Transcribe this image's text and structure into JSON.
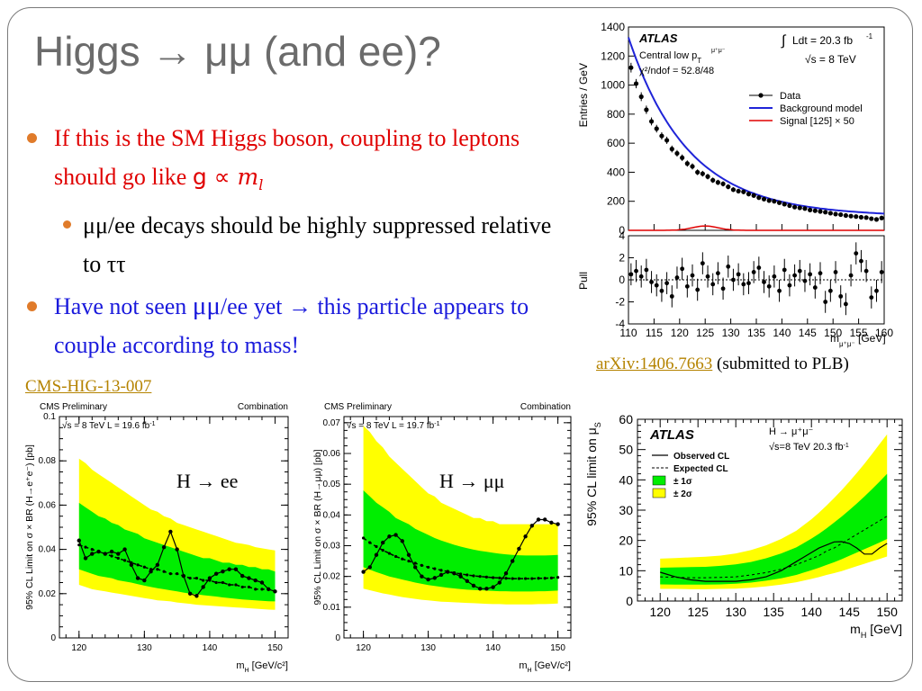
{
  "slide": {
    "title": "Higgs → μμ (and ee)?",
    "bullet1_text": "If this is the SM Higgs boson, coupling to leptons should go like ",
    "bullet1_formula_g": "g ∝ ",
    "bullet1_formula_m": "m",
    "bullet1_formula_l": "l",
    "bullet2_mumu": "μμ",
    "bullet2_text": "/ee decays should be highly suppressed relative to ",
    "bullet2_tautau": "ττ",
    "bullet3_a": "Have not seen ",
    "bullet3_mumu": "μμ",
    "bullet3_b": "/ee yet → this particle appears to couple according to mass!",
    "cms_link": "CMS-HIG-13-007",
    "arxiv_link": "arXiv:1406.7663",
    "arxiv_note": " (submitted to PLB)",
    "ann_ee": "H → ee",
    "ann_mumu": "H → μμ",
    "colors": {
      "bullet": "#e07b2a",
      "red": "#e00000",
      "blue": "#1a1adc",
      "link": "#b58300",
      "band1": "#00ee00",
      "band2": "#ffff00"
    }
  },
  "chart_data": [
    {
      "type": "scatter",
      "id": "atlas_mass",
      "title": "ATLAS",
      "labels": [
        "Central low p",
        "T",
        "μ⁺μ⁻",
        "χ²/ndof = 52.8/48",
        "Ldt = 20.3 fb",
        "-1",
        "√s = 8 TeV"
      ],
      "ylabel": "Entries / GeV",
      "xlabel": "m",
      "xlabel_sub": "μ⁺μ⁻",
      "xlabel_unit": " [GeV]",
      "xlim": [
        110,
        160
      ],
      "ylim": [
        0,
        1400
      ],
      "yticks": [
        0,
        200,
        400,
        600,
        800,
        1000,
        1200,
        1400
      ],
      "xticks": [
        110,
        115,
        120,
        125,
        130,
        135,
        140,
        145,
        150,
        155,
        160
      ],
      "legend": [
        "Data",
        "Background model",
        "Signal [125] × 50"
      ],
      "x": [
        110.5,
        111.5,
        112.5,
        113.5,
        114.5,
        115.5,
        116.5,
        117.5,
        118.5,
        119.5,
        120.5,
        121.5,
        122.5,
        123.5,
        124.5,
        125.5,
        126.5,
        127.5,
        128.5,
        129.5,
        130.5,
        131.5,
        132.5,
        133.5,
        134.5,
        135.5,
        136.5,
        137.5,
        138.5,
        139.5,
        140.5,
        141.5,
        142.5,
        143.5,
        144.5,
        145.5,
        146.5,
        147.5,
        148.5,
        149.5,
        150.5,
        151.5,
        152.5,
        153.5,
        154.5,
        155.5,
        156.5,
        157.5,
        158.5,
        159.5
      ],
      "y": [
        1120,
        1010,
        920,
        830,
        750,
        700,
        650,
        620,
        560,
        530,
        500,
        460,
        440,
        400,
        390,
        370,
        345,
        330,
        320,
        300,
        280,
        270,
        265,
        250,
        240,
        225,
        215,
        205,
        200,
        190,
        180,
        170,
        160,
        155,
        150,
        140,
        135,
        130,
        125,
        118,
        112,
        108,
        102,
        98,
        95,
        90,
        88,
        80,
        75,
        85
      ],
      "pull": {
        "ylabel": "Pull",
        "ylim": [
          -4,
          4
        ],
        "yticks": [
          -4,
          -2,
          0,
          2,
          4
        ],
        "values": [
          0.5,
          0.8,
          0.3,
          0.9,
          -0.2,
          -0.5,
          -1.0,
          -0.3,
          -1.5,
          0.2,
          1.0,
          -0.6,
          0.4,
          -0.9,
          1.5,
          0.3,
          -0.4,
          0.6,
          -0.8,
          1.2,
          0.0,
          0.5,
          -0.4,
          -0.3,
          0.7,
          1.1,
          -0.2,
          -0.6,
          0.3,
          -1.0,
          0.9,
          -0.5,
          0.4,
          0.8,
          -0.1,
          0.5,
          -0.7,
          0.6,
          -2.0,
          -1.0,
          0.7,
          -1.5,
          -2.2,
          0.4,
          2.4,
          1.7,
          0.8,
          -1.6,
          -1.0,
          0.7
        ]
      },
      "signal": {
        "center": 125,
        "peak": 30,
        "sigma": 2.5
      }
    },
    {
      "type": "line",
      "id": "cms_ee",
      "header_left": "CMS Preliminary",
      "header_right": "Combination",
      "info": "√s = 8 TeV L = 19.6 fb",
      "info_sup": "-1",
      "ylabel": "95% CL Limit on σ × BR (H→e⁺e⁻) [pb]",
      "xlabel": "m",
      "xlabel_sub": "H",
      "xlabel_unit": " [GeV/c²]",
      "xlim": [
        117,
        152
      ],
      "ylim": [
        0,
        0.1
      ],
      "yticks": [
        0,
        0.02,
        0.04,
        0.06,
        0.08,
        0.1
      ],
      "ytick_labels": [
        "0",
        "0.02",
        "0.04",
        "0.06",
        "0.08",
        "0.1"
      ],
      "xticks": [
        120,
        130,
        140,
        150
      ],
      "x": [
        120,
        121,
        122,
        123,
        124,
        125,
        126,
        127,
        128,
        129,
        130,
        131,
        132,
        133,
        134,
        135,
        136,
        137,
        138,
        139,
        140,
        141,
        142,
        143,
        144,
        145,
        146,
        147,
        148,
        149,
        150
      ],
      "observed": [
        0.044,
        0.036,
        0.038,
        0.039,
        0.038,
        0.039,
        0.038,
        0.04,
        0.033,
        0.027,
        0.026,
        0.03,
        0.033,
        0.041,
        0.048,
        0.04,
        0.028,
        0.02,
        0.019,
        0.023,
        0.027,
        0.029,
        0.03,
        0.031,
        0.031,
        0.028,
        0.027,
        0.026,
        0.025,
        0.022,
        0.021
      ],
      "expected": [
        0.042,
        0.041,
        0.04,
        0.039,
        0.038,
        0.037,
        0.036,
        0.035,
        0.034,
        0.033,
        0.032,
        0.031,
        0.031,
        0.03,
        0.029,
        0.029,
        0.028,
        0.027,
        0.027,
        0.026,
        0.026,
        0.025,
        0.025,
        0.024,
        0.024,
        0.023,
        0.023,
        0.022,
        0.022,
        0.022,
        0.021
      ],
      "band2_lo": [
        0.024,
        0.023,
        0.022,
        0.0215,
        0.021,
        0.0205,
        0.02,
        0.0195,
        0.019,
        0.0185,
        0.018,
        0.0175,
        0.017,
        0.0168,
        0.0165,
        0.016,
        0.0157,
        0.0154,
        0.015,
        0.0148,
        0.0146,
        0.0144,
        0.0142,
        0.014,
        0.0138,
        0.0136,
        0.0134,
        0.0132,
        0.013,
        0.0128,
        0.0127
      ],
      "band2_hi": [
        0.081,
        0.079,
        0.076,
        0.074,
        0.072,
        0.07,
        0.068,
        0.066,
        0.064,
        0.062,
        0.06,
        0.058,
        0.057,
        0.055,
        0.054,
        0.052,
        0.051,
        0.05,
        0.049,
        0.048,
        0.047,
        0.046,
        0.045,
        0.044,
        0.043,
        0.0425,
        0.042,
        0.041,
        0.0405,
        0.04,
        0.0395
      ],
      "band1_lo": [
        0.031,
        0.03,
        0.029,
        0.028,
        0.0275,
        0.027,
        0.026,
        0.0255,
        0.025,
        0.0243,
        0.0236,
        0.023,
        0.0225,
        0.022,
        0.0215,
        0.021,
        0.0205,
        0.02,
        0.0197,
        0.0193,
        0.019,
        0.0187,
        0.0183,
        0.018,
        0.0177,
        0.0174,
        0.0172,
        0.017,
        0.0168,
        0.0166,
        0.0165
      ],
      "band1_hi": [
        0.061,
        0.059,
        0.057,
        0.055,
        0.054,
        0.052,
        0.051,
        0.049,
        0.048,
        0.047,
        0.045,
        0.044,
        0.043,
        0.042,
        0.041,
        0.04,
        0.039,
        0.038,
        0.037,
        0.036,
        0.036,
        0.035,
        0.034,
        0.034,
        0.033,
        0.033,
        0.032,
        0.032,
        0.031,
        0.031,
        0.03
      ]
    },
    {
      "type": "line",
      "id": "cms_mumu",
      "header_left": "CMS Preliminary",
      "header_right": "Combination",
      "info": "√s = 8 TeV L = 19.7 fb",
      "info_sup": "-1",
      "ylabel": "95% CL Limit on σ × BR (H→μμ) [pb]",
      "xlabel": "m",
      "xlabel_sub": "H",
      "xlabel_unit": " [GeV/c²]",
      "xlim": [
        117,
        152
      ],
      "ylim": [
        0,
        0.072
      ],
      "yticks": [
        0,
        0.01,
        0.02,
        0.03,
        0.04,
        0.05,
        0.06,
        0.07
      ],
      "ytick_labels": [
        "0",
        "0.01",
        "0.02",
        "0.03",
        "0.04",
        "0.05",
        "0.06",
        "0.07"
      ],
      "xticks": [
        120,
        130,
        140,
        150
      ],
      "x": [
        120,
        121,
        122,
        123,
        124,
        125,
        126,
        127,
        128,
        129,
        130,
        131,
        132,
        133,
        134,
        135,
        136,
        137,
        138,
        139,
        140,
        141,
        142,
        143,
        144,
        145,
        146,
        147,
        148,
        149,
        150
      ],
      "observed": [
        0.0215,
        0.023,
        0.027,
        0.031,
        0.033,
        0.0335,
        0.0315,
        0.027,
        0.023,
        0.02,
        0.019,
        0.0195,
        0.0205,
        0.0215,
        0.021,
        0.02,
        0.0185,
        0.017,
        0.016,
        0.016,
        0.0165,
        0.018,
        0.021,
        0.025,
        0.029,
        0.033,
        0.0365,
        0.0385,
        0.0385,
        0.0375,
        0.037
      ],
      "expected": [
        0.0325,
        0.031,
        0.0297,
        0.0285,
        0.0275,
        0.0265,
        0.0257,
        0.025,
        0.0243,
        0.0236,
        0.023,
        0.0225,
        0.022,
        0.0216,
        0.0212,
        0.0208,
        0.0205,
        0.0202,
        0.02,
        0.0198,
        0.0196,
        0.0195,
        0.0194,
        0.0193,
        0.0193,
        0.0193,
        0.0193,
        0.0194,
        0.0194,
        0.0195,
        0.0197
      ],
      "band2_lo": [
        0.016,
        0.0155,
        0.015,
        0.0145,
        0.0141,
        0.0137,
        0.0133,
        0.013,
        0.0127,
        0.0124,
        0.0122,
        0.012,
        0.0118,
        0.0117,
        0.0116,
        0.0115,
        0.0114,
        0.0113,
        0.0112,
        0.0111,
        0.011,
        0.011,
        0.0109,
        0.0109,
        0.0109,
        0.0109,
        0.0109,
        0.011,
        0.011,
        0.0111,
        0.0112
      ],
      "band2_hi": [
        0.069,
        0.067,
        0.064,
        0.062,
        0.059,
        0.057,
        0.055,
        0.053,
        0.051,
        0.049,
        0.047,
        0.046,
        0.044,
        0.043,
        0.042,
        0.041,
        0.04,
        0.039,
        0.039,
        0.038,
        0.038,
        0.037,
        0.037,
        0.037,
        0.037,
        0.037,
        0.037,
        0.037,
        0.037,
        0.037,
        0.0375
      ],
      "band1_lo": [
        0.023,
        0.0222,
        0.0214,
        0.0207,
        0.02,
        0.0195,
        0.019,
        0.0185,
        0.018,
        0.0176,
        0.0172,
        0.0169,
        0.0166,
        0.0163,
        0.0161,
        0.0159,
        0.0157,
        0.0156,
        0.0155,
        0.0154,
        0.0153,
        0.0152,
        0.0152,
        0.0151,
        0.0151,
        0.0151,
        0.0151,
        0.0152,
        0.0152,
        0.0153,
        0.0154
      ],
      "band1_hi": [
        0.048,
        0.046,
        0.044,
        0.0425,
        0.041,
        0.039,
        0.038,
        0.037,
        0.0355,
        0.0345,
        0.0335,
        0.0325,
        0.0317,
        0.031,
        0.0303,
        0.0297,
        0.0292,
        0.0287,
        0.0283,
        0.028,
        0.0277,
        0.0274,
        0.0272,
        0.027,
        0.0269,
        0.0268,
        0.0268,
        0.0268,
        0.0268,
        0.0269,
        0.027
      ]
    },
    {
      "type": "line",
      "id": "atlas_limit",
      "title": "ATLAS",
      "channel": "H → μ⁺μ⁻",
      "info": "√s=8 TeV  20.3 fb",
      "info_sup": "-1",
      "legend": [
        "Observed CL",
        "Expected CL",
        "± 1σ",
        "± 2σ"
      ],
      "ylabel": "95% CL limit on μ",
      "ylabel_sub": "S",
      "xlabel": "m",
      "xlabel_sub": "H",
      "xlabel_unit": " [GeV]",
      "xlim": [
        117,
        152
      ],
      "ylim": [
        0,
        60
      ],
      "yticks": [
        0,
        10,
        20,
        30,
        40,
        50,
        60
      ],
      "xticks": [
        120,
        125,
        130,
        135,
        140,
        145,
        150
      ],
      "x": [
        120,
        122,
        124,
        126,
        128,
        130,
        132,
        134,
        136,
        138,
        140,
        141,
        142,
        143,
        144,
        145,
        146,
        147,
        148,
        149,
        150
      ],
      "observed": [
        9.5,
        8,
        7,
        6.5,
        6.5,
        6.5,
        7,
        8,
        10,
        13,
        16,
        17.5,
        18.5,
        19.5,
        19.6,
        19,
        17.5,
        15.5,
        15.5,
        17.5,
        19
      ],
      "expected": [
        8,
        7.8,
        7.7,
        7.7,
        7.8,
        8,
        8.6,
        9.4,
        10.5,
        12,
        14,
        15,
        16.5,
        17.5,
        19,
        20.5,
        22,
        23.5,
        25,
        26.5,
        28
      ],
      "band2_lo": [
        4,
        4,
        3.9,
        3.9,
        4,
        4.1,
        4.4,
        4.8,
        5.4,
        6.2,
        7.3,
        7.9,
        8.6,
        9.2,
        9.9,
        10.7,
        11.5,
        12.3,
        13.1,
        13.9,
        14.7
      ],
      "band2_hi": [
        14,
        14.2,
        14.4,
        14.6,
        15,
        15.7,
        16.8,
        18.4,
        20.5,
        23.2,
        27,
        29.2,
        31.5,
        34,
        36.6,
        39.4,
        42.3,
        45.3,
        48.5,
        51.8,
        55
      ],
      "band1_lo": [
        5.5,
        5.4,
        5.4,
        5.4,
        5.5,
        5.7,
        6.1,
        6.7,
        7.5,
        8.6,
        10.2,
        11,
        11.9,
        12.8,
        13.8,
        14.9,
        16,
        17.1,
        18.2,
        19.3,
        20.5
      ],
      "band1_hi": [
        11,
        11.1,
        11.2,
        11.3,
        11.6,
        12.1,
        12.9,
        14.1,
        15.7,
        17.7,
        20.6,
        22.2,
        24,
        25.9,
        27.9,
        30,
        32.2,
        34.5,
        36.9,
        39.4,
        42
      ]
    }
  ]
}
